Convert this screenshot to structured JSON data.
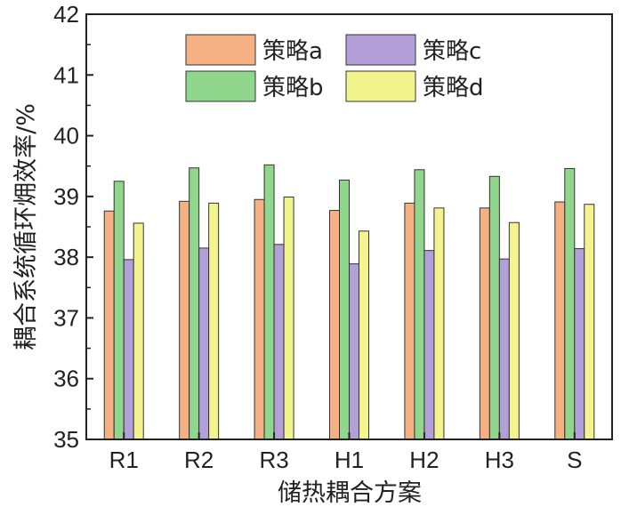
{
  "chart_data": {
    "type": "bar",
    "title": "",
    "xlabel": "储热耦合方案",
    "ylabel": "耦合系统循环㶲效率/%",
    "categories": [
      "R1",
      "R2",
      "R3",
      "H1",
      "H2",
      "H3",
      "S"
    ],
    "ylim": [
      35,
      42
    ],
    "yticks": [
      35,
      36,
      37,
      38,
      39,
      40,
      41,
      42
    ],
    "grid": false,
    "legend_position": "top-center",
    "series": [
      {
        "name": "策略a",
        "color": "#f5b183",
        "values": [
          38.76,
          38.92,
          38.95,
          38.77,
          38.89,
          38.81,
          38.91
        ]
      },
      {
        "name": "策略b",
        "color": "#90d68c",
        "values": [
          39.25,
          39.47,
          39.52,
          39.27,
          39.44,
          39.33,
          39.46
        ]
      },
      {
        "name": "策略c",
        "color": "#b3a0d8",
        "values": [
          37.96,
          38.15,
          38.21,
          37.89,
          38.11,
          37.97,
          38.14
        ]
      },
      {
        "name": "策略d",
        "color": "#f3f48e",
        "values": [
          38.56,
          38.89,
          38.99,
          38.43,
          38.81,
          38.57,
          38.87
        ]
      }
    ]
  }
}
